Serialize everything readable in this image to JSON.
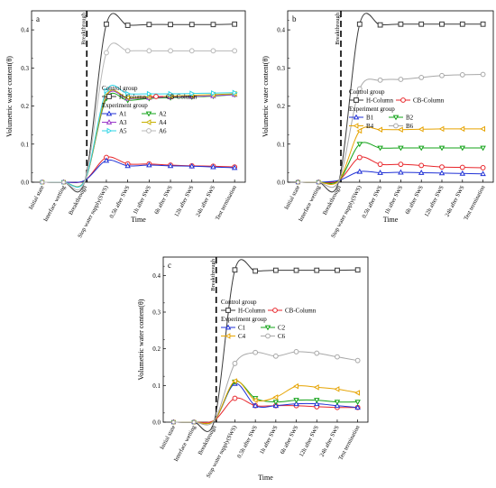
{
  "x_categories": [
    "Initial state",
    "Interface wetting",
    "Breakthrough",
    "Stop water supply(SWS)",
    "0.5h after SWS",
    "1h after SWS",
    "6h after SWS",
    "12h after SWS",
    "24h after SWS",
    "Test termination"
  ],
  "colors": {
    "H-Column": "#3a3a3a",
    "CB-Column": "#e8262b",
    "A1": "#2132d6",
    "A2": "#13a318",
    "A3": "#9a38c9",
    "A4": "#c7b000",
    "A5": "#2dd4e6",
    "A6": "#b8b8b8",
    "B1": "#2132d6",
    "B2": "#13a318",
    "B4": "#e6a300",
    "B6": "#a8a8a8",
    "C1": "#2132d6",
    "C2": "#13a318",
    "C4": "#e6a300",
    "C6": "#a8a8a8"
  },
  "chart_data": [
    {
      "type": "line",
      "panel_label": "a",
      "xlabel": "Time",
      "ylabel": "Volumetric water content(θ)",
      "ylim": [
        0,
        0.45
      ],
      "yticks": [
        0.0,
        0.1,
        0.2,
        0.3,
        0.4
      ],
      "ytick_labels": [
        "0.0",
        "0.1",
        "0.2",
        "0.3",
        "0.4"
      ],
      "breakthrough_label": "Breakthrough",
      "breakthrough_index": 2,
      "legend": {
        "placement": "center-right",
        "control_title": "Control group",
        "experiment_title": "Experiment group",
        "control": [
          "H-Column",
          "CB-Column"
        ],
        "experiment": [
          "A1",
          "A2",
          "A3",
          "A4",
          "A5",
          "A6"
        ]
      },
      "series": [
        {
          "name": "H-Column",
          "marker": "square",
          "values": [
            0,
            0,
            0.005,
            0.415,
            0.412,
            0.414,
            0.414,
            0.414,
            0.414,
            0.415
          ]
        },
        {
          "name": "CB-Column",
          "marker": "circle",
          "values": [
            0,
            0,
            0.005,
            0.065,
            0.048,
            0.048,
            0.045,
            0.043,
            0.042,
            0.04
          ]
        },
        {
          "name": "A1",
          "marker": "triangle-up",
          "values": [
            0,
            0,
            0.005,
            0.057,
            0.043,
            0.045,
            0.043,
            0.042,
            0.04,
            0.038
          ]
        },
        {
          "name": "A2",
          "marker": "triangle-down",
          "values": [
            0,
            0,
            0.005,
            0.22,
            0.215,
            0.22,
            0.222,
            0.224,
            0.226,
            0.23
          ]
        },
        {
          "name": "A3",
          "marker": "triangle-up",
          "values": [
            0,
            0,
            0.005,
            0.225,
            0.22,
            0.222,
            0.224,
            0.225,
            0.227,
            0.23
          ]
        },
        {
          "name": "A4",
          "marker": "triangle-left",
          "values": [
            0,
            0,
            0.005,
            0.228,
            0.222,
            0.224,
            0.226,
            0.228,
            0.23,
            0.232
          ]
        },
        {
          "name": "A5",
          "marker": "triangle-right",
          "values": [
            0,
            0,
            0.005,
            0.24,
            0.232,
            0.232,
            0.232,
            0.233,
            0.234,
            0.235
          ]
        },
        {
          "name": "A6",
          "marker": "circle",
          "values": [
            0,
            0,
            0.005,
            0.34,
            0.345,
            0.345,
            0.345,
            0.345,
            0.345,
            0.345
          ]
        }
      ]
    },
    {
      "type": "line",
      "panel_label": "b",
      "xlabel": "Time",
      "ylabel": "Volumetric water content(θ)",
      "ylim": [
        0,
        0.45
      ],
      "yticks": [
        0.0,
        0.1,
        0.2,
        0.3,
        0.4
      ],
      "ytick_labels": [
        "0.0",
        "0.1",
        "0.2",
        "0.3",
        "0.4"
      ],
      "breakthrough_label": "Breakthrough",
      "breakthrough_index": 2,
      "legend": {
        "placement": "center-right",
        "control_title": "Control group",
        "experiment_title": "Experiment group",
        "control": [
          "H-Column",
          "CB-Column"
        ],
        "experiment": [
          "B1",
          "B2",
          "B4",
          "B6"
        ]
      },
      "series": [
        {
          "name": "H-Column",
          "marker": "square",
          "values": [
            0,
            0,
            0.005,
            0.415,
            0.413,
            0.415,
            0.415,
            0.415,
            0.415,
            0.415
          ]
        },
        {
          "name": "CB-Column",
          "marker": "circle",
          "values": [
            0,
            0,
            0.005,
            0.065,
            0.047,
            0.047,
            0.044,
            0.04,
            0.039,
            0.038
          ]
        },
        {
          "name": "B1",
          "marker": "triangle-up",
          "values": [
            0,
            0,
            0.005,
            0.028,
            0.025,
            0.026,
            0.025,
            0.024,
            0.023,
            0.022
          ]
        },
        {
          "name": "B2",
          "marker": "triangle-down",
          "values": [
            0,
            0,
            0.005,
            0.1,
            0.09,
            0.09,
            0.09,
            0.09,
            0.09,
            0.09
          ]
        },
        {
          "name": "B4",
          "marker": "triangle-left",
          "values": [
            0,
            0,
            0.005,
            0.135,
            0.138,
            0.138,
            0.139,
            0.14,
            0.14,
            0.14
          ]
        },
        {
          "name": "B6",
          "marker": "circle",
          "values": [
            0,
            0,
            0.005,
            0.245,
            0.268,
            0.27,
            0.275,
            0.28,
            0.282,
            0.283
          ]
        }
      ]
    },
    {
      "type": "line",
      "panel_label": "c",
      "xlabel": "Time",
      "ylabel": "Volumetric water content(θ)",
      "ylim": [
        0,
        0.45
      ],
      "yticks": [
        0.0,
        0.1,
        0.2,
        0.3,
        0.4
      ],
      "ytick_labels": [
        "0.0",
        "0.1",
        "0.2",
        "0.3",
        "0.4"
      ],
      "breakthrough_label": "Breakthrough",
      "breakthrough_index": 2,
      "legend": {
        "placement": "center-right",
        "control_title": "Control group",
        "experiment_title": "Experiment group",
        "control": [
          "H-Column",
          "CB-Column"
        ],
        "experiment": [
          "C1",
          "C2",
          "C4",
          "C6"
        ]
      },
      "series": [
        {
          "name": "H-Column",
          "marker": "square",
          "values": [
            0,
            0,
            0.005,
            0.415,
            0.412,
            0.414,
            0.414,
            0.414,
            0.414,
            0.415
          ]
        },
        {
          "name": "CB-Column",
          "marker": "circle",
          "values": [
            0,
            0,
            0.005,
            0.065,
            0.045,
            0.045,
            0.045,
            0.042,
            0.04,
            0.04
          ]
        },
        {
          "name": "C1",
          "marker": "triangle-up",
          "values": [
            0,
            0,
            0.005,
            0.105,
            0.045,
            0.045,
            0.05,
            0.05,
            0.045,
            0.04
          ]
        },
        {
          "name": "C2",
          "marker": "triangle-down",
          "values": [
            0,
            0,
            0.005,
            0.11,
            0.065,
            0.055,
            0.06,
            0.06,
            0.055,
            0.055
          ]
        },
        {
          "name": "C4",
          "marker": "triangle-left",
          "values": [
            0,
            0,
            0.005,
            0.112,
            0.06,
            0.068,
            0.098,
            0.095,
            0.09,
            0.08
          ]
        },
        {
          "name": "C6",
          "marker": "circle",
          "values": [
            0,
            0,
            0.005,
            0.16,
            0.19,
            0.18,
            0.192,
            0.188,
            0.178,
            0.168
          ]
        }
      ]
    }
  ]
}
